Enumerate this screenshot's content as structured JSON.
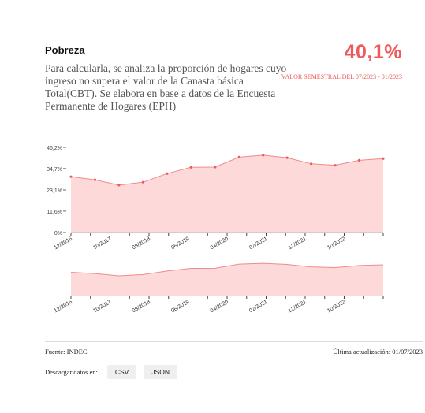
{
  "header": {
    "title": "Pobreza",
    "description": "Para calcularla, se analiza la proporción de hogares cuyo ingreso no supera el valor de la Canasta básica Total(CBT). Se elabora en base a datos de la Encuesta Permanente de Hogares (EPH)",
    "value": "40,1%",
    "value_caption": "VALOR SEMESTRAL DEL 07/2023 - 01/2023"
  },
  "colors": {
    "accent": "#ee5a5a",
    "fill": "#fdd9d9",
    "line": "#ef8b8b"
  },
  "chart_data": {
    "type": "area",
    "title": "",
    "xlabel": "",
    "ylabel": "",
    "ylim": [
      0,
      46.2
    ],
    "y_ticks": [
      0,
      11.6,
      23.1,
      34.7,
      46.2
    ],
    "y_tick_labels": [
      "0%",
      "11,6%",
      "23,1%",
      "34,7%",
      "46,2%"
    ],
    "x_tick_labels": [
      "12/2016",
      "10/2017",
      "08/2018",
      "06/2019",
      "04/2020",
      "02/2021",
      "12/2021",
      "10/2022"
    ],
    "x": [
      "12/2016",
      "06/2017",
      "12/2017",
      "06/2018",
      "12/2018",
      "06/2019",
      "12/2019",
      "06/2020",
      "12/2020",
      "06/2021",
      "12/2021",
      "06/2022",
      "12/2022",
      "06/2023"
    ],
    "values": [
      30.3,
      28.6,
      25.7,
      27.3,
      32.0,
      35.4,
      35.5,
      40.9,
      42.0,
      40.6,
      37.3,
      36.5,
      39.2,
      40.1
    ],
    "navigator_x_tick_labels": [
      "12/2016",
      "10/2017",
      "08/2018",
      "06/2019",
      "04/2020",
      "02/2021",
      "12/2021",
      "10/2022"
    ],
    "grid": false,
    "legend": "none"
  },
  "footer": {
    "source_label": "Fuente:",
    "source_link": "INDEC",
    "updated": "Última actualización: 01/07/2023",
    "download_label": "Descargar datos en:",
    "csv_label": "CSV",
    "json_label": "JSON"
  }
}
